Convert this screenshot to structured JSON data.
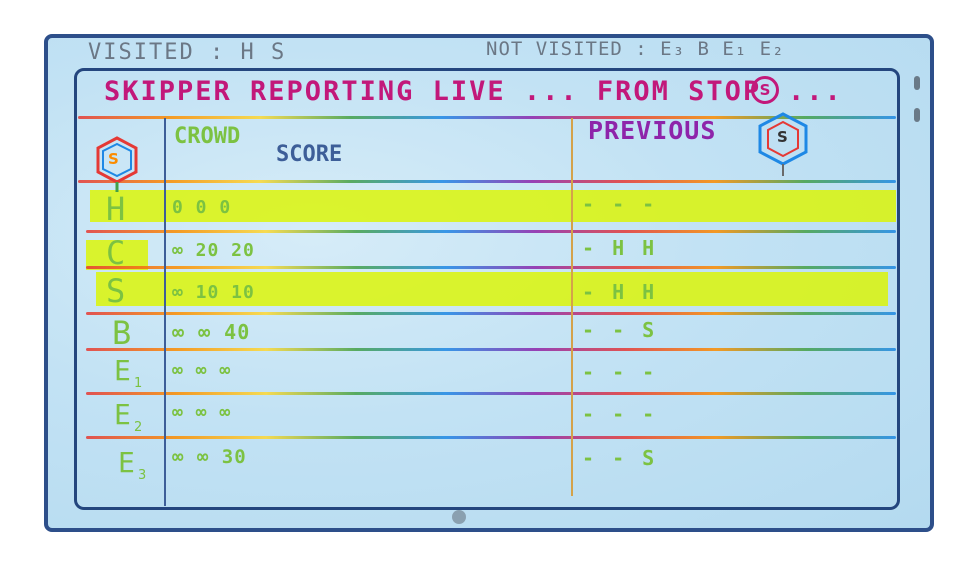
{
  "header": {
    "visited": "VISITED : H S",
    "not_visited": "NOT VISITED : E₃ B E₁ E₂",
    "headline": "SKIPPER REPORTING LIVE ... FROM STOP",
    "headline_badge": "S",
    "headline_tail": "..."
  },
  "columns": {
    "stop_badge": "S",
    "crowd": "CROWD",
    "score": "SCORE",
    "previous": "PREVIOUS",
    "previous_badge": "S"
  },
  "rows": [
    {
      "label": "H",
      "sub": "",
      "values": "0  0  0",
      "previous": "- - -",
      "highlight": true
    },
    {
      "label": "C",
      "sub": "",
      "values": "∞ 20 20",
      "previous": "- H H",
      "highlight": true
    },
    {
      "label": "S",
      "sub": "",
      "values": "∞ 10 10",
      "previous": "- H H",
      "highlight": true
    },
    {
      "label": "B",
      "sub": "",
      "values": "∞ ∞ 40",
      "previous": "- - S",
      "highlight": false
    },
    {
      "label": "E",
      "sub": "1",
      "values": "∞ ∞ ∞",
      "previous": "- - -",
      "highlight": false
    },
    {
      "label": "E",
      "sub": "2",
      "values": "∞ ∞ ∞",
      "previous": "- - -",
      "highlight": false
    },
    {
      "label": "E",
      "sub": "3",
      "values": "∞ ∞ 30",
      "previous": "- - S",
      "highlight": false
    }
  ],
  "colors": {
    "frame": "#2d4f8a",
    "headline": "#c2187a",
    "values": "#7cc242",
    "highlight": "#dcf500"
  }
}
